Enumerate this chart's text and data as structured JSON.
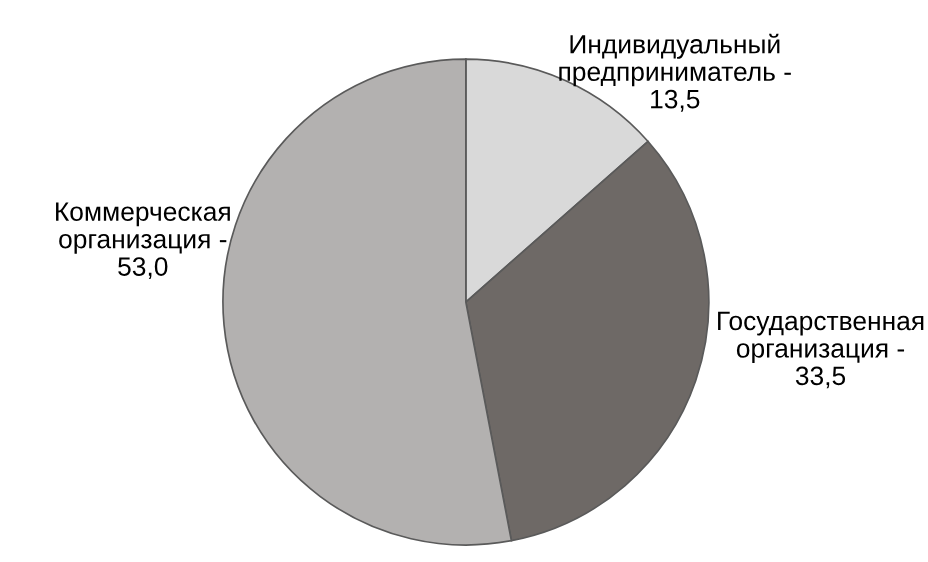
{
  "chart_data": {
    "type": "pie",
    "categories": [
      "Индивидуальный\nпредприниматель -\n13,5",
      "Государственная\nорганизация -\n33,5",
      "Коммерческая\nорганизация -\n53,0"
    ],
    "values": [
      13.5,
      33.5,
      53.0
    ],
    "colors": [
      "#d9d9d9",
      "#6e6966",
      "#b3b1b0"
    ]
  }
}
